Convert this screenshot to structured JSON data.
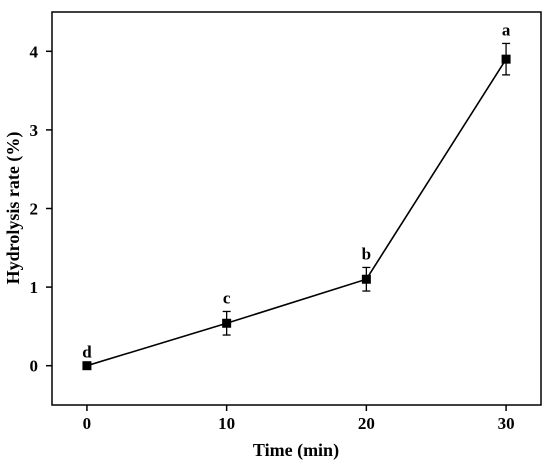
{
  "chart_data": {
    "type": "line",
    "title": "",
    "xlabel": "Time (min)",
    "ylabel": "Hydrolysis rate (%)",
    "xlim": [
      -2.5,
      32.5
    ],
    "ylim": [
      -0.5,
      4.5
    ],
    "x_ticks": [
      0,
      10,
      20,
      30
    ],
    "x_tick_labels": [
      "0",
      "10",
      "20",
      "30"
    ],
    "y_ticks": [
      0,
      1,
      2,
      3,
      4
    ],
    "y_tick_labels": [
      "0",
      "1",
      "2",
      "3",
      "4"
    ],
    "grid": false,
    "legend": "none",
    "marker": "square",
    "color": "#000000",
    "series": [
      {
        "x": [
          0,
          10,
          20,
          30
        ],
        "y": [
          0,
          0.54,
          1.1,
          3.9
        ],
        "error": [
          0,
          0.15,
          0.15,
          0.2
        ],
        "point_labels": [
          "d",
          "c",
          "b",
          "a"
        ]
      }
    ]
  }
}
